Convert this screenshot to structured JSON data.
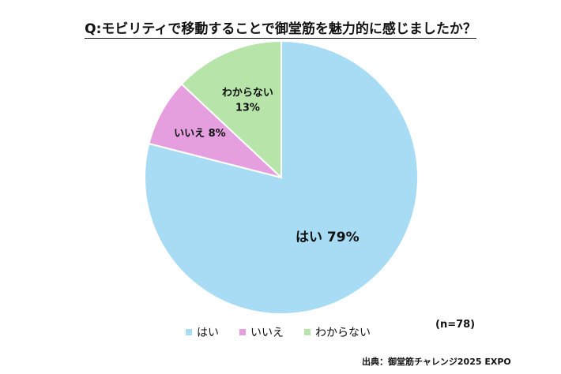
{
  "chart_data": {
    "type": "pie",
    "title": "Q:モビリティで移動することで御堂筋を魅力的に感じましたか？",
    "slices": [
      {
        "label": "はい",
        "value": 79,
        "value_label": "79%",
        "color": "#a8dcf4"
      },
      {
        "label": "いいえ",
        "value": 8,
        "value_label": "8%",
        "color": "#e59fdf"
      },
      {
        "label": "わからない",
        "value": 13,
        "value_label": "13%",
        "color": "#b7e4a9"
      }
    ],
    "legend": {
      "placement": "bottom",
      "entries": [
        "はい",
        "いいえ",
        "わからない"
      ]
    },
    "n_note": "(n=78)",
    "source": "出典：御堂筋チャレンジ2025 EXPO"
  }
}
